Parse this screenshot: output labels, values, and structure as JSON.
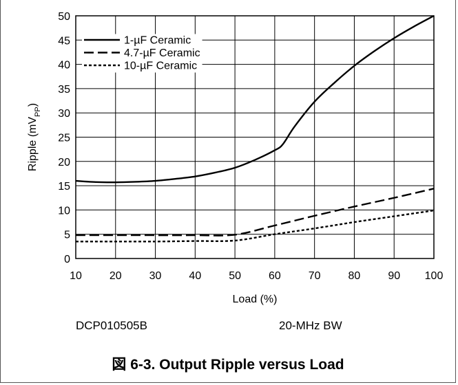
{
  "caption": "図 6-3. Output Ripple versus Load",
  "notes": {
    "device": "DCP010505B",
    "bandwidth": "20-MHz BW"
  },
  "chart_data": {
    "type": "line",
    "title": "",
    "xlabel": "Load (%)",
    "ylabel": "Ripple (mV",
    "ylabel_sub": "PP",
    "ylabel_close": ")",
    "xlim": [
      10,
      100
    ],
    "ylim": [
      0,
      50
    ],
    "xticks": [
      10,
      20,
      30,
      40,
      50,
      60,
      70,
      80,
      90,
      100
    ],
    "yticks": [
      0,
      5,
      10,
      15,
      20,
      25,
      30,
      35,
      40,
      45,
      50
    ],
    "grid": true,
    "legend_position": "top-left",
    "series": [
      {
        "name": "1-µF Ceramic",
        "style": "solid",
        "x": [
          10,
          15,
          20,
          25,
          30,
          35,
          40,
          45,
          50,
          55,
          60,
          62,
          65,
          70,
          75,
          80,
          85,
          90,
          95,
          100
        ],
        "y": [
          16.0,
          15.75,
          15.7,
          15.8,
          16.0,
          16.4,
          16.9,
          17.7,
          18.7,
          20.3,
          22.3,
          23.5,
          27.2,
          32.3,
          36.2,
          39.7,
          42.7,
          45.4,
          47.8,
          50.0
        ]
      },
      {
        "name": "4.7-µF Ceramic",
        "style": "dashed",
        "x": [
          10,
          20,
          30,
          40,
          50,
          60,
          70,
          80,
          90,
          100
        ],
        "y": [
          4.8,
          4.8,
          4.8,
          4.8,
          4.9,
          6.8,
          8.8,
          10.7,
          12.5,
          14.4
        ]
      },
      {
        "name": "10-µF Ceramic",
        "style": "dotted",
        "x": [
          10,
          20,
          30,
          40,
          50,
          60,
          70,
          80,
          90,
          100
        ],
        "y": [
          3.5,
          3.5,
          3.5,
          3.6,
          3.7,
          5.0,
          6.2,
          7.5,
          8.7,
          9.9
        ]
      }
    ]
  }
}
